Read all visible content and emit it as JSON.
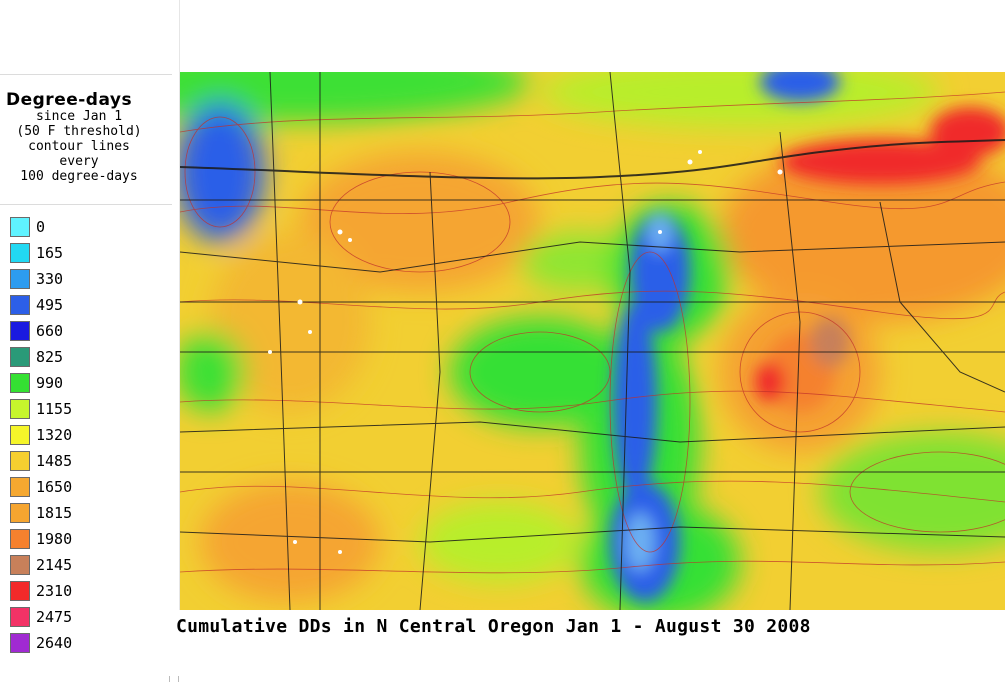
{
  "legend": {
    "title": "Degree-days",
    "subtitle_lines": [
      "since Jan 1",
      "(50 F threshold)",
      "contour lines",
      "every",
      "100 degree-days"
    ],
    "items": [
      {
        "label": "0",
        "color": "#5ff3ff"
      },
      {
        "label": "165",
        "color": "#22d8f2"
      },
      {
        "label": "330",
        "color": "#2d9cf0"
      },
      {
        "label": "495",
        "color": "#2c5fe8"
      },
      {
        "label": "660",
        "color": "#1a1ae0"
      },
      {
        "label": "825",
        "color": "#2a9a78"
      },
      {
        "label": "990",
        "color": "#34e032"
      },
      {
        "label": "1155",
        "color": "#c6f52c"
      },
      {
        "label": "1320",
        "color": "#f5f52a"
      },
      {
        "label": "1485",
        "color": "#f5cf30"
      },
      {
        "label": "1650",
        "color": "#f5a830"
      },
      {
        "label": "1815",
        "color": "#f5a530"
      },
      {
        "label": "1980",
        "color": "#f5812e"
      },
      {
        "label": "2145",
        "color": "#c8805a"
      },
      {
        "label": "2310",
        "color": "#f22a2a"
      },
      {
        "label": "2475",
        "color": "#f23266"
      },
      {
        "label": "2640",
        "color": "#a02ad2"
      }
    ]
  },
  "map": {
    "caption": "Cumulative DDs in N Central Oregon Jan 1 - August 30 2008"
  }
}
